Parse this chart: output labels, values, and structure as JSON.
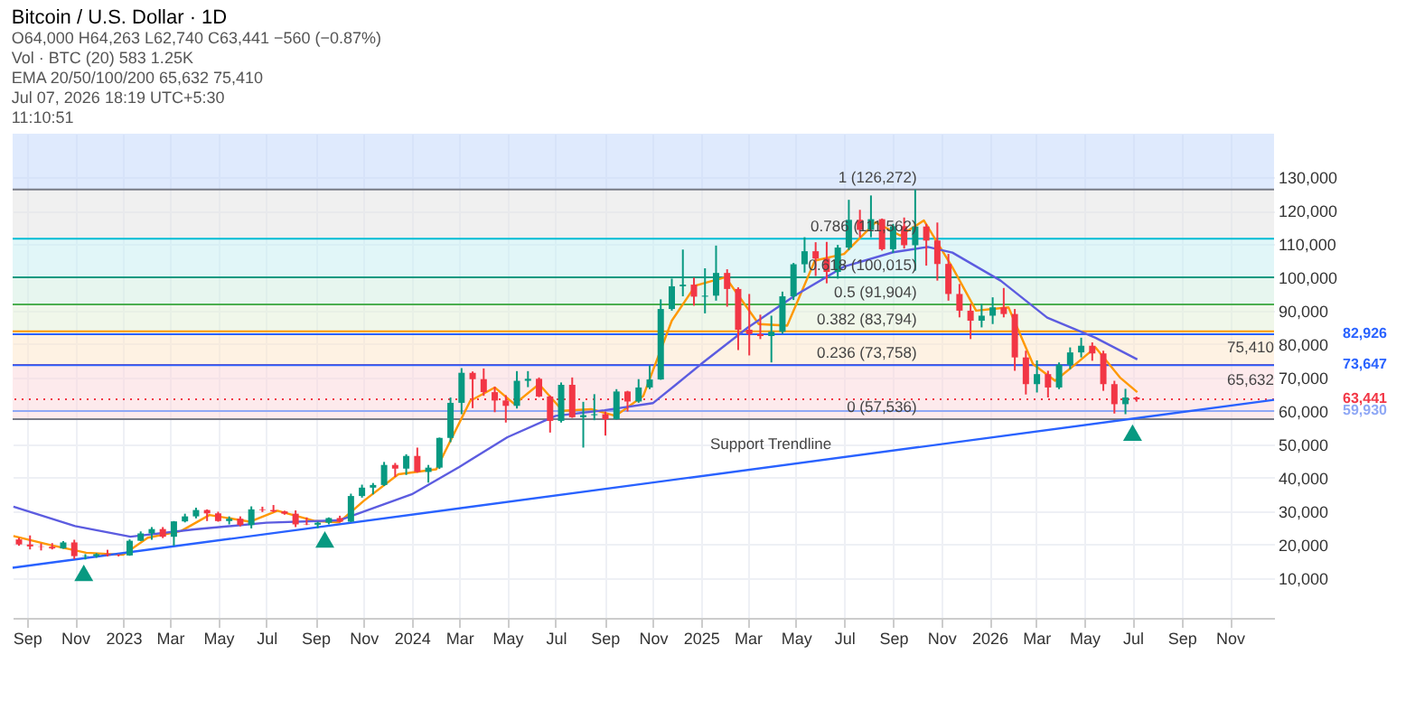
{
  "chart_data": {
    "type": "candlestick",
    "title": "Bitcoin / U.S. Dollar · 1D",
    "subtitle": "O64,000 H64,263 L62,740 C63,441 −560 (−0.87%)",
    "annotations": [
      "Vol · BTC (20) 583 1.25K",
      "EMA 20/50/100/200 65,632 75,410",
      "Jul 07, 2026 18:19 UTC+5:30",
      "11:10:51",
      {
        "text": "1 (126,272)",
        "x": "2025-10-01",
        "y": 126272
      },
      {
        "text": "0.786 (111,562)",
        "x": "2025-10-01",
        "y": 111562
      },
      {
        "text": "0.618 (100,015)",
        "x": "2025-10-01",
        "y": 100015
      },
      {
        "text": "0.5 (91,904)",
        "x": "2025-10-01",
        "y": 91904
      },
      {
        "text": "0.382 (83,794)",
        "x": "2025-10-01",
        "y": 83794
      },
      {
        "text": "0.236 (73,758)",
        "x": "2025-10-01",
        "y": 73758
      },
      {
        "text": "0 (57,536)",
        "x": "2025-10-01",
        "y": 57536
      },
      {
        "text": "75,410",
        "x": "2026-12-27",
        "y": 75410
      },
      {
        "text": "65,632",
        "x": "2026-12-27",
        "y": 65632
      },
      {
        "text": "Support Trendline",
        "x": "2025-06-15",
        "y": 46500
      }
    ],
    "x": [
      "2022-08-22",
      "2022-09-05",
      "2022-09-19",
      "2022-10-03",
      "2022-10-17",
      "2022-10-31",
      "2022-11-14",
      "2022-11-28",
      "2022-12-12",
      "2022-12-26",
      "2023-01-09",
      "2023-01-23",
      "2023-02-06",
      "2023-02-20",
      "2023-03-06",
      "2023-03-20",
      "2023-04-03",
      "2023-04-17",
      "2023-05-01",
      "2023-05-15",
      "2023-05-29",
      "2023-06-12",
      "2023-06-26",
      "2023-07-10",
      "2023-07-24",
      "2023-08-07",
      "2023-08-21",
      "2023-09-04",
      "2023-09-18",
      "2023-10-02",
      "2023-10-16",
      "2023-10-30",
      "2023-11-13",
      "2023-11-27",
      "2023-12-11",
      "2023-12-25",
      "2024-01-08",
      "2024-01-22",
      "2024-02-05",
      "2024-02-19",
      "2024-03-04",
      "2024-03-18",
      "2024-04-01",
      "2024-04-15",
      "2024-04-29",
      "2024-05-13",
      "2024-05-27",
      "2024-06-10",
      "2024-06-24",
      "2024-07-08",
      "2024-07-22",
      "2024-08-05",
      "2024-08-19",
      "2024-09-02",
      "2024-09-16",
      "2024-09-30",
      "2024-10-14",
      "2024-10-28",
      "2024-11-11",
      "2024-11-25",
      "2024-12-09",
      "2024-12-23",
      "2025-01-06",
      "2025-01-20",
      "2025-02-03",
      "2025-02-17",
      "2025-03-03",
      "2025-03-17",
      "2025-03-31",
      "2025-04-14",
      "2025-04-28",
      "2025-05-12",
      "2025-05-26",
      "2025-06-09",
      "2025-06-23",
      "2025-07-07",
      "2025-07-21",
      "2025-08-04",
      "2025-08-18",
      "2025-09-01",
      "2025-09-15",
      "2025-09-29",
      "2025-10-13",
      "2025-10-27",
      "2025-11-10",
      "2025-11-24",
      "2025-12-08",
      "2025-12-22",
      "2026-01-05",
      "2026-01-19",
      "2026-02-02",
      "2026-02-16",
      "2026-03-02",
      "2026-03-16",
      "2026-03-30",
      "2026-04-13",
      "2026-04-27",
      "2026-05-11",
      "2026-05-25",
      "2026-06-08",
      "2026-06-22",
      "2026-07-06"
    ],
    "ohlc": [
      [
        21500,
        22000,
        19600,
        20000
      ],
      [
        20000,
        22700,
        18500,
        19400
      ],
      [
        19400,
        20300,
        18200,
        19300
      ],
      [
        19300,
        20400,
        18500,
        18800
      ],
      [
        18800,
        21000,
        18700,
        20600
      ],
      [
        20600,
        21400,
        15600,
        16500
      ],
      [
        16500,
        17100,
        15500,
        16600
      ],
      [
        16500,
        17400,
        16000,
        17100
      ],
      [
        17100,
        18400,
        16400,
        16800
      ],
      [
        16800,
        17100,
        16400,
        16700
      ],
      [
        16700,
        21500,
        16600,
        21100
      ],
      [
        21100,
        23900,
        21000,
        23300
      ],
      [
        23300,
        25200,
        21400,
        24600
      ],
      [
        24600,
        25200,
        21900,
        22300
      ],
      [
        22300,
        27000,
        19600,
        26900
      ],
      [
        26900,
        29200,
        26600,
        28400
      ],
      [
        28400,
        31000,
        27800,
        30300
      ],
      [
        30300,
        30500,
        27000,
        29300
      ],
      [
        29300,
        29800,
        26800,
        27000
      ],
      [
        27000,
        28400,
        26000,
        27700
      ],
      [
        27700,
        28400,
        25400,
        25800
      ],
      [
        25800,
        31400,
        24800,
        30500
      ],
      [
        30500,
        31300,
        29700,
        30300
      ],
      [
        30300,
        31800,
        29600,
        29900
      ],
      [
        29900,
        30100,
        28900,
        29200
      ],
      [
        29200,
        30200,
        25200,
        26000
      ],
      [
        26000,
        28100,
        25800,
        25900
      ],
      [
        25900,
        26800,
        24900,
        26500
      ],
      [
        26500,
        28100,
        26000,
        27900
      ],
      [
        27900,
        28600,
        26600,
        26800
      ],
      [
        26800,
        35200,
        26700,
        34500
      ],
      [
        34500,
        37900,
        34000,
        37000
      ],
      [
        37000,
        38400,
        35000,
        37800
      ],
      [
        37800,
        44700,
        37500,
        43800
      ],
      [
        43800,
        44400,
        40200,
        42700
      ],
      [
        42700,
        47000,
        40800,
        46500
      ],
      [
        46500,
        49000,
        41500,
        41700
      ],
      [
        41700,
        43800,
        38500,
        43000
      ],
      [
        43000,
        52000,
        42600,
        51900
      ],
      [
        51900,
        64000,
        50600,
        62400
      ],
      [
        62400,
        72800,
        59000,
        71400
      ],
      [
        71400,
        71800,
        60800,
        69500
      ],
      [
        69500,
        72700,
        64500,
        65600
      ],
      [
        65600,
        67200,
        59600,
        63100
      ],
      [
        63100,
        64700,
        56500,
        61500
      ],
      [
        61500,
        71900,
        60700,
        69000
      ],
      [
        69000,
        71900,
        67100,
        69600
      ],
      [
        69600,
        70000,
        64100,
        64300
      ],
      [
        64300,
        64600,
        53500,
        57000
      ],
      [
        57000,
        68500,
        56500,
        67800
      ],
      [
        67800,
        70000,
        57900,
        58100
      ],
      [
        58100,
        62700,
        49000,
        58700
      ],
      [
        58700,
        65000,
        57200,
        59000
      ],
      [
        59000,
        59800,
        52600,
        57500
      ],
      [
        57500,
        66500,
        57400,
        65800
      ],
      [
        65800,
        66000,
        59800,
        62800
      ],
      [
        62800,
        69500,
        62400,
        67000
      ],
      [
        67000,
        73600,
        66500,
        69400
      ],
      [
        69400,
        93400,
        69300,
        90500
      ],
      [
        90500,
        99600,
        90000,
        97300
      ],
      [
        97300,
        108300,
        94300,
        97800
      ],
      [
        97800,
        99900,
        91500,
        94200
      ],
      [
        94200,
        102700,
        89200,
        94500
      ],
      [
        94500,
        109500,
        93000,
        101300
      ],
      [
        101300,
        102400,
        91200,
        96500
      ],
      [
        96500,
        97000,
        78200,
        84300
      ],
      [
        84300,
        95000,
        76600,
        83000
      ],
      [
        83000,
        88800,
        81500,
        82400
      ],
      [
        82400,
        88500,
        74500,
        83700
      ],
      [
        83700,
        95700,
        83100,
        94300
      ],
      [
        94300,
        104300,
        93200,
        103900
      ],
      [
        103900,
        112000,
        101400,
        107800
      ],
      [
        107800,
        110500,
        100400,
        105600
      ],
      [
        105600,
        110600,
        98200,
        101600
      ],
      [
        101600,
        109700,
        99600,
        108900
      ],
      [
        108900,
        123200,
        108200,
        117200
      ],
      [
        117200,
        120200,
        112000,
        114200
      ],
      [
        114200,
        124500,
        112000,
        117400
      ],
      [
        117400,
        117600,
        108000,
        108400
      ],
      [
        108400,
        116000,
        107300,
        115300
      ],
      [
        115300,
        117900,
        108600,
        109600
      ],
      [
        109600,
        126272,
        102000,
        115200
      ],
      [
        115200,
        116000,
        103500,
        111000
      ],
      [
        111000,
        116400,
        99000,
        104000
      ],
      [
        104000,
        107000,
        93000,
        95000
      ],
      [
        95000,
        98000,
        88000,
        90000
      ],
      [
        90000,
        92000,
        81500,
        87000
      ],
      [
        87000,
        92000,
        85000,
        88500
      ],
      [
        88500,
        94000,
        86000,
        91000
      ],
      [
        91000,
        96800,
        88000,
        89000
      ],
      [
        89000,
        90500,
        72000,
        76000
      ],
      [
        76000,
        78000,
        64900,
        68000
      ],
      [
        68000,
        75100,
        65500,
        71000
      ],
      [
        71000,
        72000,
        64000,
        67000
      ],
      [
        67000,
        74500,
        66500,
        73800
      ],
      [
        73800,
        79000,
        72500,
        77500
      ],
      [
        77500,
        81900,
        76000,
        79500
      ],
      [
        79500,
        80500,
        75000,
        77200
      ],
      [
        77200,
        78000,
        66000,
        68000
      ],
      [
        68000,
        69000,
        59200,
        62000
      ],
      [
        62000,
        66600,
        59000,
        64000
      ],
      [
        64000,
        64263,
        62740,
        63441
      ]
    ],
    "series": [
      {
        "type": "line",
        "color": "#ff9800",
        "x": [
          "2022-08-15",
          "2022-10-01",
          "2022-11-15",
          "2023-01-01",
          "2023-02-01",
          "2023-03-15",
          "2023-04-20",
          "2023-06-10",
          "2023-07-15",
          "2023-09-01",
          "2023-10-01",
          "2023-11-01",
          "2023-12-15",
          "2024-02-01",
          "2024-03-15",
          "2024-04-15",
          "2024-05-10",
          "2024-06-10",
          "2024-07-10",
          "2024-08-15",
          "2024-09-15",
          "2024-10-20",
          "2024-11-25",
          "2024-12-25",
          "2025-02-01",
          "2025-03-15",
          "2025-04-20",
          "2025-05-25",
          "2025-07-01",
          "2025-08-10",
          "2025-09-10",
          "2025-10-10",
          "2025-11-15",
          "2025-12-15",
          "2026-01-25",
          "2026-02-25",
          "2026-03-25",
          "2026-04-25",
          "2026-05-15",
          "2026-06-15",
          "2026-07-07"
        ],
        "values": [
          22500,
          19800,
          17500,
          16900,
          22000,
          24000,
          28800,
          26800,
          30100,
          27000,
          26600,
          33000,
          41000,
          42500,
          63000,
          67000,
          62000,
          68000,
          60000,
          60500,
          58500,
          64500,
          87000,
          97500,
          100000,
          86000,
          85500,
          105000,
          107000,
          116500,
          112500,
          117000,
          103000,
          90000,
          91000,
          74000,
          69000,
          75000,
          79000,
          70000,
          65600
        ]
      },
      {
        "type": "line",
        "color": "#5c5ce0",
        "x": [
          "2022-08-15",
          "2022-11-01",
          "2023-01-10",
          "2023-04-01",
          "2023-07-01",
          "2023-10-01",
          "2024-01-01",
          "2024-03-01",
          "2024-05-01",
          "2024-07-01",
          "2024-09-01",
          "2024-11-01",
          "2024-12-01",
          "2025-01-01",
          "2025-03-01",
          "2025-05-01",
          "2025-07-01",
          "2025-09-01",
          "2025-10-15",
          "2025-11-15",
          "2026-01-15",
          "2026-03-15",
          "2026-05-15",
          "2026-07-07"
        ],
        "values": [
          31300,
          25500,
          22300,
          24500,
          26500,
          27200,
          35000,
          43200,
          52100,
          58500,
          60200,
          62300,
          68000,
          74000,
          84900,
          94700,
          103200,
          107500,
          109100,
          107400,
          99000,
          87900,
          81900,
          75400
        ]
      },
      {
        "type": "line",
        "color": "#2962ff",
        "x": [
          "2022-08-14",
          "2026-12-27"
        ],
        "values": [
          13000,
          63300
        ]
      },
      {
        "type": "scatter",
        "color": "#089981",
        "marker": "triangle",
        "x": [
          "2022-11-12",
          "2023-09-13",
          "2026-07-01"
        ],
        "values": [
          11500,
          21500,
          53500
        ]
      }
    ],
    "xlim": [
      "2022-08-14",
      "2026-12-27"
    ],
    "ylim": [
      -2000,
      143000
    ],
    "xticks": [
      {
        "value": "2022-09-01",
        "label": "Sep"
      },
      {
        "value": "2022-11-01",
        "label": "Nov"
      },
      {
        "value": "2023-01-01",
        "label": "2023"
      },
      {
        "value": "2023-03-01",
        "label": "Mar"
      },
      {
        "value": "2023-05-01",
        "label": "May"
      },
      {
        "value": "2023-07-01",
        "label": "Jul"
      },
      {
        "value": "2023-09-01",
        "label": "Sep"
      },
      {
        "value": "2023-11-01",
        "label": "Nov"
      },
      {
        "value": "2024-01-01",
        "label": "2024"
      },
      {
        "value": "2024-03-01",
        "label": "Mar"
      },
      {
        "value": "2024-05-01",
        "label": "May"
      },
      {
        "value": "2024-07-01",
        "label": "Jul"
      },
      {
        "value": "2024-09-01",
        "label": "Sep"
      },
      {
        "value": "2024-11-01",
        "label": "Nov"
      },
      {
        "value": "2025-01-01",
        "label": "2025"
      },
      {
        "value": "2025-03-01",
        "label": "Mar"
      },
      {
        "value": "2025-05-01",
        "label": "May"
      },
      {
        "value": "2025-07-01",
        "label": "Jul"
      },
      {
        "value": "2025-09-01",
        "label": "Sep"
      },
      {
        "value": "2025-11-01",
        "label": "Nov"
      },
      {
        "value": "2026-01-01",
        "label": "2026"
      },
      {
        "value": "2026-03-01",
        "label": "Mar"
      },
      {
        "value": "2026-05-01",
        "label": "May"
      },
      {
        "value": "2026-07-01",
        "label": "Jul"
      },
      {
        "value": "2026-09-01",
        "label": "Sep"
      },
      {
        "value": "2026-11-01",
        "label": "Nov"
      }
    ],
    "yticks": [
      {
        "value": 10000,
        "label": "10,000"
      },
      {
        "value": 20000,
        "label": "20,000"
      },
      {
        "value": 30000,
        "label": "30,000"
      },
      {
        "value": 40000,
        "label": "40,000"
      },
      {
        "value": 50000,
        "label": "50,000"
      },
      {
        "value": 60000,
        "label": "60,000"
      },
      {
        "value": 70000,
        "label": "70,000"
      },
      {
        "value": 80000,
        "label": "80,000"
      },
      {
        "value": 90000,
        "label": "90,000"
      },
      {
        "value": 100000,
        "label": "100,000"
      },
      {
        "value": 110000,
        "label": "110,000"
      },
      {
        "value": 120000,
        "label": "120,000"
      },
      {
        "value": 130000,
        "label": "130,000"
      }
    ],
    "grid": true,
    "ref_lines": [
      {
        "axis": "y",
        "value": 126272,
        "color": "#787b86"
      },
      {
        "axis": "y",
        "value": 111562,
        "color": "#00bcd4"
      },
      {
        "axis": "y",
        "value": 100015,
        "color": "#089981"
      },
      {
        "axis": "y",
        "value": 91904,
        "color": "#4caf50"
      },
      {
        "axis": "y",
        "value": 83794,
        "color": "#ff9800"
      },
      {
        "axis": "y",
        "value": 73758,
        "color": "#f23645"
      },
      {
        "axis": "y",
        "value": 57536,
        "color": "#787b86"
      },
      {
        "axis": "y",
        "value": 82926,
        "label": "82,926",
        "color": "#2962ff"
      },
      {
        "axis": "y",
        "value": 73647,
        "label": "73,647",
        "color": "#2962ff"
      },
      {
        "axis": "y",
        "value": 63441,
        "label": "63,441",
        "color": "#f23645",
        "line_style": "dotted"
      },
      {
        "axis": "y",
        "value": 59930,
        "label": "59,930",
        "color": "#8fa8f5"
      }
    ],
    "bands": [
      {
        "axis": "y",
        "from": 126272,
        "to": 143000,
        "color": "#c5d8fb"
      },
      {
        "axis": "y",
        "from": 111562,
        "to": 126272,
        "color": "#e3e3e3"
      },
      {
        "axis": "y",
        "from": 100015,
        "to": 111562,
        "color": "#c9eef2"
      },
      {
        "axis": "y",
        "from": 91904,
        "to": 100015,
        "color": "#d3eee2"
      },
      {
        "axis": "y",
        "from": 83794,
        "to": 91904,
        "color": "#e3f1d8"
      },
      {
        "axis": "y",
        "from": 73758,
        "to": 83794,
        "color": "#fde7cc"
      },
      {
        "axis": "y",
        "from": 57536,
        "to": 73758,
        "color": "#fbd9dd"
      }
    ]
  }
}
